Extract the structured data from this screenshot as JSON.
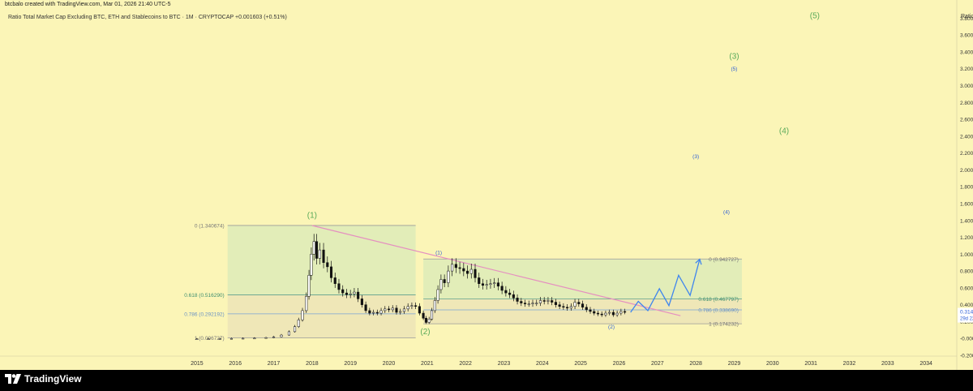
{
  "header": {
    "credit": "btcbalo created with TradingView.com, Mar 01, 2026 21:40 UTC-5",
    "symbol_line": "Ratio Total Market Cap Excluding BTC, ETH and Stablecoins to BTC · 1M · CRYPTOCAP  +0.001603 (+0.51%)"
  },
  "footer": {
    "brand": "TradingView"
  },
  "colors": {
    "background": "#fbf5b7",
    "fib_upper_zone": "#e2edb8",
    "fib_lower_zone": "#efe7b7",
    "trendline": "#e58fc0",
    "projection": "#3f86ee",
    "wave_label_major": "#5aaa5a",
    "wave_label_minor": "#2e5fd6",
    "price_badge": "#ffffff",
    "candles": "#111111"
  },
  "chart_data": {
    "type": "candlestick",
    "title": "Ratio Total Market Cap Excluding BTC, ETH and Stablecoins to BTC",
    "interval": "1M",
    "exchange": "CRYPTOCAP",
    "change": "+0.001603 (+0.51%)",
    "ylabel": "Ratio",
    "ylim": [
      -0.2,
      3.9
    ],
    "y_ticks": [
      "3.800000",
      "3.600000",
      "3.400000",
      "3.200000",
      "3.000000",
      "2.800000",
      "2.600000",
      "2.400000",
      "2.200000",
      "2.000000",
      "1.800000",
      "1.600000",
      "1.400000",
      "1.200000",
      "1.000000",
      "0.800000",
      "0.600000",
      "0.400000",
      "0.200000",
      "-0.000000",
      "-0.200000"
    ],
    "x_ticks": [
      "2015",
      "2016",
      "2017",
      "2018",
      "2019",
      "2020",
      "2021",
      "2022",
      "2023",
      "2024",
      "2025",
      "2026",
      "2027",
      "2028",
      "2029",
      "2030",
      "2031",
      "2032",
      "2033",
      "2034"
    ],
    "xlim": [
      2014.2,
      2034.8
    ],
    "last_price": "0.314221",
    "countdown": "29d 22h",
    "series": [
      {
        "t": 2015.0,
        "v": -0.005
      },
      {
        "t": 2015.3,
        "v": -0.003
      },
      {
        "t": 2015.6,
        "v": -0.001
      },
      {
        "t": 2015.9,
        "v": 0.0
      },
      {
        "t": 2016.2,
        "v": 0.002
      },
      {
        "t": 2016.5,
        "v": 0.004
      },
      {
        "t": 2016.8,
        "v": 0.01
      },
      {
        "t": 2017.0,
        "v": 0.02
      },
      {
        "t": 2017.2,
        "v": 0.04
      },
      {
        "t": 2017.4,
        "v": 0.08
      },
      {
        "t": 2017.55,
        "v": 0.14
      },
      {
        "t": 2017.65,
        "v": 0.22
      },
      {
        "t": 2017.75,
        "v": 0.33
      },
      {
        "t": 2017.85,
        "v": 0.5
      },
      {
        "t": 2017.92,
        "v": 0.75
      },
      {
        "t": 2017.98,
        "v": 1.0
      },
      {
        "t": 2018.05,
        "v": 1.15
      },
      {
        "t": 2018.12,
        "v": 0.95
      },
      {
        "t": 2018.2,
        "v": 1.05
      },
      {
        "t": 2018.3,
        "v": 0.9
      },
      {
        "t": 2018.4,
        "v": 0.85
      },
      {
        "t": 2018.5,
        "v": 0.72
      },
      {
        "t": 2018.6,
        "v": 0.65
      },
      {
        "t": 2018.7,
        "v": 0.58
      },
      {
        "t": 2018.8,
        "v": 0.54
      },
      {
        "t": 2018.9,
        "v": 0.52
      },
      {
        "t": 2019.0,
        "v": 0.53
      },
      {
        "t": 2019.1,
        "v": 0.55
      },
      {
        "t": 2019.2,
        "v": 0.47
      },
      {
        "t": 2019.3,
        "v": 0.4
      },
      {
        "t": 2019.4,
        "v": 0.33
      },
      {
        "t": 2019.5,
        "v": 0.3
      },
      {
        "t": 2019.6,
        "v": 0.31
      },
      {
        "t": 2019.7,
        "v": 0.3
      },
      {
        "t": 2019.8,
        "v": 0.33
      },
      {
        "t": 2019.9,
        "v": 0.35
      },
      {
        "t": 2020.0,
        "v": 0.34
      },
      {
        "t": 2020.1,
        "v": 0.36
      },
      {
        "t": 2020.2,
        "v": 0.31
      },
      {
        "t": 2020.3,
        "v": 0.32
      },
      {
        "t": 2020.4,
        "v": 0.35
      },
      {
        "t": 2020.5,
        "v": 0.38
      },
      {
        "t": 2020.6,
        "v": 0.39
      },
      {
        "t": 2020.7,
        "v": 0.38
      },
      {
        "t": 2020.8,
        "v": 0.3
      },
      {
        "t": 2020.9,
        "v": 0.24
      },
      {
        "t": 2020.97,
        "v": 0.19
      },
      {
        "t": 2021.05,
        "v": 0.23
      },
      {
        "t": 2021.12,
        "v": 0.33
      },
      {
        "t": 2021.2,
        "v": 0.45
      },
      {
        "t": 2021.28,
        "v": 0.58
      },
      {
        "t": 2021.36,
        "v": 0.7
      },
      {
        "t": 2021.45,
        "v": 0.66
      },
      {
        "t": 2021.55,
        "v": 0.8
      },
      {
        "t": 2021.65,
        "v": 0.88
      },
      {
        "t": 2021.75,
        "v": 0.84
      },
      {
        "t": 2021.85,
        "v": 0.83
      },
      {
        "t": 2021.95,
        "v": 0.8
      },
      {
        "t": 2022.05,
        "v": 0.77
      },
      {
        "t": 2022.15,
        "v": 0.82
      },
      {
        "t": 2022.25,
        "v": 0.72
      },
      {
        "t": 2022.35,
        "v": 0.65
      },
      {
        "t": 2022.45,
        "v": 0.63
      },
      {
        "t": 2022.55,
        "v": 0.64
      },
      {
        "t": 2022.65,
        "v": 0.65
      },
      {
        "t": 2022.75,
        "v": 0.66
      },
      {
        "t": 2022.85,
        "v": 0.62
      },
      {
        "t": 2022.95,
        "v": 0.57
      },
      {
        "t": 2023.05,
        "v": 0.54
      },
      {
        "t": 2023.15,
        "v": 0.52
      },
      {
        "t": 2023.25,
        "v": 0.48
      },
      {
        "t": 2023.35,
        "v": 0.44
      },
      {
        "t": 2023.45,
        "v": 0.42
      },
      {
        "t": 2023.55,
        "v": 0.41
      },
      {
        "t": 2023.65,
        "v": 0.41
      },
      {
        "t": 2023.75,
        "v": 0.42
      },
      {
        "t": 2023.85,
        "v": 0.42
      },
      {
        "t": 2023.95,
        "v": 0.45
      },
      {
        "t": 2024.05,
        "v": 0.44
      },
      {
        "t": 2024.15,
        "v": 0.45
      },
      {
        "t": 2024.25,
        "v": 0.43
      },
      {
        "t": 2024.35,
        "v": 0.4
      },
      {
        "t": 2024.45,
        "v": 0.38
      },
      {
        "t": 2024.55,
        "v": 0.37
      },
      {
        "t": 2024.65,
        "v": 0.36
      },
      {
        "t": 2024.75,
        "v": 0.38
      },
      {
        "t": 2024.85,
        "v": 0.43
      },
      {
        "t": 2024.95,
        "v": 0.41
      },
      {
        "t": 2025.05,
        "v": 0.37
      },
      {
        "t": 2025.15,
        "v": 0.34
      },
      {
        "t": 2025.25,
        "v": 0.32
      },
      {
        "t": 2025.35,
        "v": 0.3
      },
      {
        "t": 2025.45,
        "v": 0.29
      },
      {
        "t": 2025.55,
        "v": 0.28
      },
      {
        "t": 2025.65,
        "v": 0.3
      },
      {
        "t": 2025.75,
        "v": 0.31
      },
      {
        "t": 2025.85,
        "v": 0.28
      },
      {
        "t": 2025.95,
        "v": 0.3
      },
      {
        "t": 2026.05,
        "v": 0.32
      },
      {
        "t": 2026.15,
        "v": 0.314
      }
    ],
    "projection": [
      {
        "t": 2026.3,
        "v": 0.31
      },
      {
        "t": 2026.5,
        "v": 0.44
      },
      {
        "t": 2026.75,
        "v": 0.33
      },
      {
        "t": 2027.05,
        "v": 0.59
      },
      {
        "t": 2027.3,
        "v": 0.39
      },
      {
        "t": 2027.55,
        "v": 0.75
      },
      {
        "t": 2027.85,
        "v": 0.51
      },
      {
        "t": 2028.1,
        "v": 0.94
      }
    ],
    "trendline": [
      {
        "t": 2018.0,
        "v": 1.34
      },
      {
        "t": 2027.6,
        "v": 0.27
      }
    ],
    "fib_boxes": [
      {
        "t0": 2015.8,
        "t1": 2020.7,
        "v_top": 1.340674,
        "v_bottom": 0.006727,
        "levels": [
          {
            "label": "0 (1.340674)",
            "value": 1.340674
          },
          {
            "label": "0.618 (0.516290)",
            "value": 0.51629
          },
          {
            "label": "0.786 (0.292192)",
            "value": 0.292192
          },
          {
            "label": "1 (0.006727)",
            "value": 0.006727
          }
        ]
      },
      {
        "t0": 2020.9,
        "t1": 2029.2,
        "v_top": 0.942727,
        "v_bottom": 0.174232,
        "levels": [
          {
            "label": "0 (0.942727)",
            "value": 0.942727
          },
          {
            "label": "0.618 (0.467797)",
            "value": 0.467797
          },
          {
            "label": "0.786 (0.338690)",
            "value": 0.33869
          },
          {
            "label": "1 (0.174232)",
            "value": 0.174232
          }
        ]
      }
    ],
    "wave_labels": [
      {
        "text": "(1)",
        "t": 2018.0,
        "v": 1.43,
        "kind": "major"
      },
      {
        "text": "(2)",
        "t": 2020.95,
        "v": 0.05,
        "kind": "major"
      },
      {
        "text": "(3)",
        "t": 2029.0,
        "v": 3.32,
        "kind": "major"
      },
      {
        "text": "(4)",
        "t": 2030.3,
        "v": 2.43,
        "kind": "major"
      },
      {
        "text": "(5)",
        "t": 2031.1,
        "v": 3.8,
        "kind": "major"
      },
      {
        "text": "(1)",
        "t": 2021.3,
        "v": 1.0,
        "kind": "minor"
      },
      {
        "text": "(2)",
        "t": 2025.8,
        "v": 0.12,
        "kind": "minor"
      },
      {
        "text": "(3)",
        "t": 2028.0,
        "v": 2.14,
        "kind": "minor"
      },
      {
        "text": "(4)",
        "t": 2028.8,
        "v": 1.48,
        "kind": "minor"
      },
      {
        "text": "(5)",
        "t": 2029.0,
        "v": 3.18,
        "kind": "minor"
      }
    ]
  }
}
